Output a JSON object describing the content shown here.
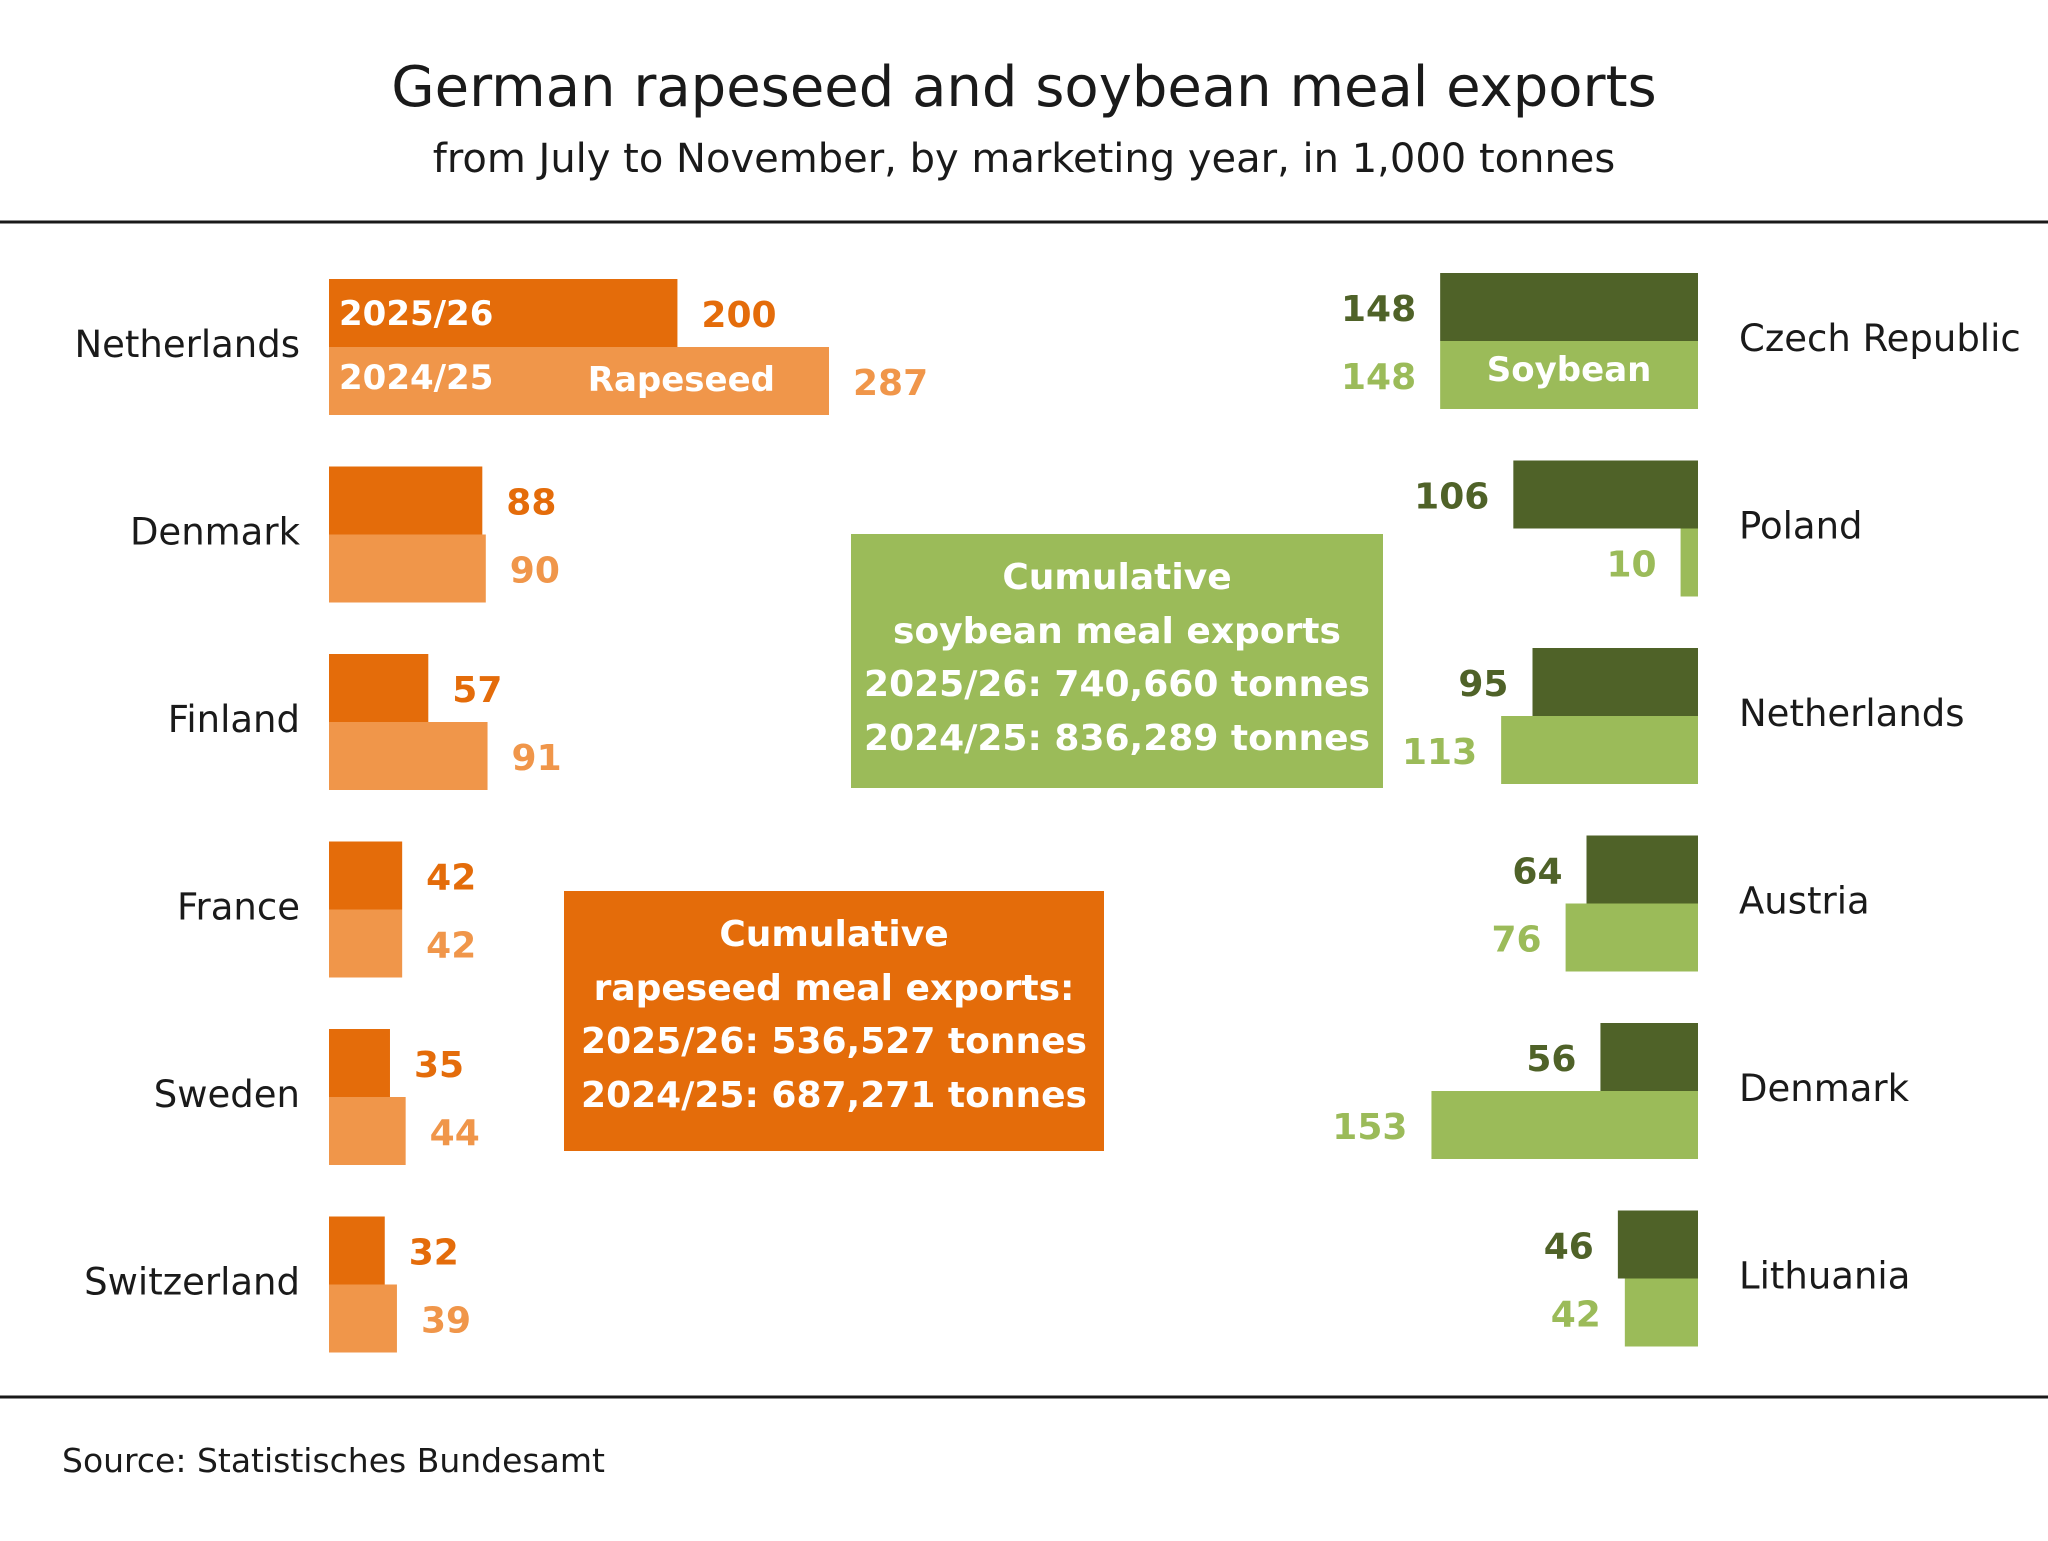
{
  "title": "German rapeseed and soybean meal exports",
  "subtitle": "from July to November, by marketing year, in 1,000 tonnes",
  "source": "Source:  Statistisches Bundesamt",
  "colors": {
    "rapeseed_2025": "#e46c0a",
    "rapeseed_2024": "#f0964a",
    "soybean_2025": "#4f6228",
    "soybean_2024": "#9bbb59",
    "text": "#1a1a1a",
    "rule": "#1a1a1a"
  },
  "legend": {
    "year_2025": "2025/26",
    "year_2024": "2024/25",
    "rapeseed": "Rapeseed",
    "soybean": "Soybean"
  },
  "soy_box": {
    "line1": "Cumulative",
    "line2": "soybean meal exports",
    "line3": "2025/26: 740,660 tonnes",
    "line4": "2024/25: 836,289 tonnes"
  },
  "rape_box": {
    "line1": "Cumulative",
    "line2": "rapeseed meal exports:",
    "line3": "2025/26: 536,527 tonnes",
    "line4": "2024/25: 687,271 tonnes"
  },
  "chart_data": [
    {
      "type": "bar",
      "orientation": "horizontal",
      "title": "Rapeseed",
      "categories": [
        "Netherlands",
        "Denmark",
        "Finland",
        "France",
        "Sweden",
        "Switzerland"
      ],
      "series": [
        {
          "name": "2025/26",
          "values": [
            200,
            88,
            57,
            42,
            35,
            32
          ]
        },
        {
          "name": "2024/25",
          "values": [
            287,
            90,
            91,
            42,
            44,
            39
          ]
        }
      ]
    },
    {
      "type": "bar",
      "orientation": "horizontal",
      "title": "Soybean",
      "categories": [
        "Czech Republic",
        "Poland",
        "Netherlands",
        "Austria",
        "Denmark",
        "Lithuania"
      ],
      "series": [
        {
          "name": "2025/26",
          "values": [
            148,
            106,
            95,
            64,
            56,
            46
          ]
        },
        {
          "name": "2024/25",
          "values": [
            148,
            10,
            113,
            76,
            153,
            42
          ]
        }
      ]
    }
  ]
}
